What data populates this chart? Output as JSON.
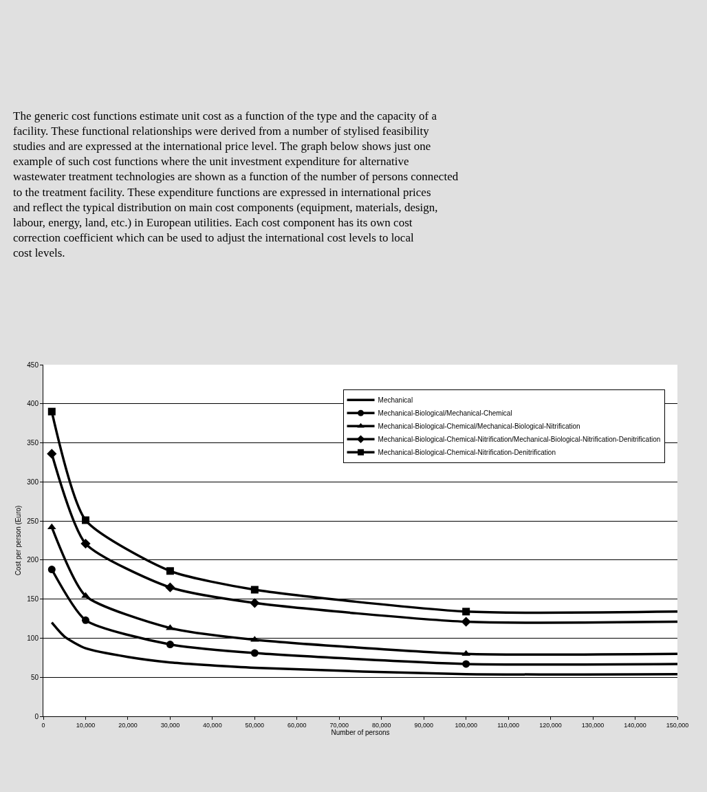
{
  "chart_data": {
    "type": "line",
    "annotations": [
      "The generic cost functions estimate unit cost as a function of the type and the capacity of a facility. These functional relationships were derived from a number of stylised feasibility studies and are expressed at the international price level. The graph below shows just one example of such cost functions where the unit investment expenditure for alternative wastewater treatment technologies are shown as a function of the number of persons connected to the treatment facility. These expenditure functions are expressed in international prices and reflect the typical distribution on main cost components (equipment, materials, design, labour, energy, land, etc.) in European utilities. Each cost component has its own cost correction coefficient which can be used to adjust the international cost levels to local cost levels."
    ],
    "xlabel": "Number of persons",
    "ylabel": "Cost per person (Euro)",
    "x": [
      2000,
      10000,
      30000,
      50000,
      100000,
      150000
    ],
    "series": [
      {
        "name": "Mechanical",
        "color": "#000000",
        "marker": "none",
        "x": [
          2000,
          5000,
          10000,
          20000,
          30000,
          50000,
          100000,
          150000
        ],
        "values": [
          120,
          102,
          87,
          76,
          69,
          62,
          54,
          54
        ]
      },
      {
        "name": "Mechanical-Biological/Mechanical-Chemical",
        "color": "#000000",
        "marker": "circle",
        "values": [
          188,
          123,
          92,
          81,
          67,
          67
        ]
      },
      {
        "name": "Mechanical-Biological-Chemical/Mechanical-Biological-Nitrification",
        "color": "#000000",
        "marker": "triangle",
        "values": [
          242,
          154,
          113,
          98,
          80,
          80
        ]
      },
      {
        "name": "Mechanical-Biological-Chemical-Nitrification/Mechanical-Biological-Nitrification-Denitrification",
        "color": "#000000",
        "marker": "diamond",
        "values": [
          336,
          221,
          165,
          145,
          121,
          121
        ]
      },
      {
        "name": "Mechanical-Biological-Chemical-Nitrification-Denitrification",
        "color": "#000000",
        "marker": "square",
        "values": [
          390,
          251,
          186,
          162,
          134,
          134
        ]
      }
    ],
    "xlim": [
      0,
      150000
    ],
    "ylim": [
      0,
      450
    ],
    "xticks": [
      0,
      {
        "value": 10000,
        "label": "10,000"
      },
      {
        "value": 20000,
        "label": "20,000"
      },
      {
        "value": 30000,
        "label": "30,000"
      },
      {
        "value": 40000,
        "label": "40,000"
      },
      {
        "value": 50000,
        "label": "50,000"
      },
      {
        "value": 60000,
        "label": "60,000"
      },
      {
        "value": 70000,
        "label": "70,000"
      },
      {
        "value": 80000,
        "label": "80,000"
      },
      {
        "value": 90000,
        "label": "90,000"
      },
      {
        "value": 100000,
        "label": "100,000"
      },
      {
        "value": 110000,
        "label": "110,000"
      },
      {
        "value": 120000,
        "label": "120,000"
      },
      {
        "value": 130000,
        "label": "130,000"
      },
      {
        "value": 140000,
        "label": "140,000"
      },
      {
        "value": 150000,
        "label": "150,000"
      }
    ],
    "yticks": [
      0,
      50,
      100,
      150,
      200,
      250,
      300,
      350,
      400,
      450
    ],
    "grid": "y",
    "legend": "top right",
    "line_style": "solid"
  }
}
